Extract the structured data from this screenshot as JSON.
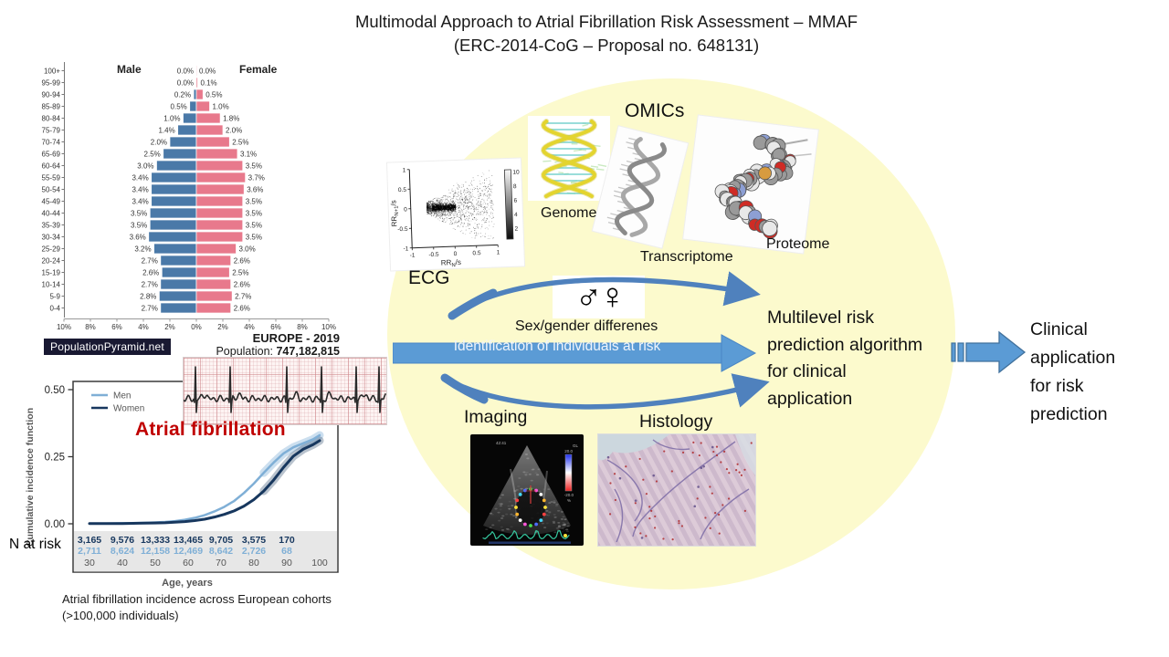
{
  "title": {
    "line1": "Multimodal Approach to Atrial Fibrillation Risk Assessment – MMAF",
    "line2": "(ERC-2014-CoG – Proposal no. 648131)"
  },
  "colors": {
    "ellipse": "#fcfacd",
    "male_bar": "#4a79a8",
    "female_bar": "#e8798c",
    "men_line": "#7fafd6",
    "women_line": "#17375e",
    "arrow_fill": "#5b9bd5",
    "arrow_outline": "#4a86c5",
    "striped_outline": "#41719c",
    "curved_arrow": "#4f81bd",
    "annotation_red": "#c00000",
    "badge_bg": "#191932",
    "table_bg": "#e7e7e7"
  },
  "labels": {
    "ecg": "ECG",
    "omics": "OMICs",
    "genome": "Genome",
    "transcriptome": "Transcriptome",
    "proteome": "Proteome",
    "gender_symbols": "♂♀",
    "sex_gender": "Sex/gender differenes",
    "identification": "Identification of individuals at risk",
    "imaging": "Imaging",
    "histology": "Histology"
  },
  "multilevel_text": {
    "lines": [
      "Multilevel risk",
      "prediction algorithm",
      "for clinical",
      "application"
    ]
  },
  "clinical_text": {
    "lines": [
      "Clinical",
      "application",
      "for risk",
      "prediction"
    ]
  },
  "caption": {
    "line1": "Atrial fibrillation incidence across European cohorts",
    "line2": "(>100,000  individuals)"
  },
  "imaging_panel": {
    "timestamp": "42:41",
    "corner_label": "GL",
    "colorbar_top": "20.0",
    "colorbar_bottom": "-20.0",
    "colorbar_unit": "%"
  },
  "chart_data": [
    {
      "id": "population_pyramid",
      "type": "bar",
      "title": "EUROPE - 2019",
      "subtitle_label": "Population: ",
      "subtitle_value": "747,182,815",
      "source": "PopulationPyramid.net",
      "unit": "%",
      "xlim": [
        0,
        10
      ],
      "x_ticks": [
        "10%",
        "8%",
        "6%",
        "4%",
        "2%",
        "0%",
        "2%",
        "4%",
        "6%",
        "8%",
        "10%"
      ],
      "categories": [
        "100+",
        "95-99",
        "90-94",
        "85-89",
        "80-84",
        "75-79",
        "70-74",
        "65-69",
        "60-64",
        "55-59",
        "50-54",
        "45-49",
        "40-44",
        "35-39",
        "30-34",
        "25-29",
        "20-24",
        "15-19",
        "10-14",
        "5-9",
        "0-4"
      ],
      "series": [
        {
          "name": "Male",
          "values": [
            0.0,
            0.0,
            0.2,
            0.5,
            1.0,
            1.4,
            2.0,
            2.5,
            3.0,
            3.4,
            3.4,
            3.4,
            3.5,
            3.5,
            3.6,
            3.2,
            2.7,
            2.6,
            2.7,
            2.8,
            2.7
          ]
        },
        {
          "name": "Female",
          "values": [
            0.0,
            0.1,
            0.5,
            1.0,
            1.8,
            2.0,
            2.5,
            3.1,
            3.5,
            3.7,
            3.6,
            3.5,
            3.5,
            3.5,
            3.5,
            3.0,
            2.6,
            2.5,
            2.6,
            2.7,
            2.6
          ]
        }
      ]
    },
    {
      "id": "af_incidence",
      "type": "line",
      "annotation": "Atrial fibrillation",
      "ylabel": "Cumulative incidence function",
      "xlabel": "Age, years",
      "ylim": [
        0,
        0.55
      ],
      "xlim": [
        27,
        103
      ],
      "y_ticks": [
        "0.50",
        "0.25",
        "0.00"
      ],
      "legend_position": "top-left",
      "series": [
        {
          "name": "Men",
          "color": "#7fafd6",
          "x": [
            30,
            35,
            40,
            45,
            50,
            53,
            56,
            59,
            62,
            65,
            68,
            71,
            74,
            77,
            80,
            83,
            86,
            89,
            92,
            95,
            98,
            100
          ],
          "y": [
            0.001,
            0.001,
            0.002,
            0.003,
            0.005,
            0.007,
            0.01,
            0.015,
            0.022,
            0.032,
            0.046,
            0.063,
            0.085,
            0.115,
            0.15,
            0.19,
            0.228,
            0.262,
            0.285,
            0.3,
            0.315,
            0.33
          ]
        },
        {
          "name": "Women",
          "color": "#17375e",
          "x": [
            30,
            35,
            40,
            45,
            50,
            53,
            56,
            59,
            62,
            65,
            68,
            71,
            74,
            77,
            80,
            83,
            86,
            89,
            92,
            95,
            98,
            100
          ],
          "y": [
            0.001,
            0.001,
            0.001,
            0.002,
            0.003,
            0.004,
            0.006,
            0.008,
            0.012,
            0.017,
            0.025,
            0.035,
            0.048,
            0.066,
            0.09,
            0.122,
            0.163,
            0.21,
            0.252,
            0.278,
            0.295,
            0.31
          ]
        }
      ],
      "n_at_risk": {
        "label": "N at risk",
        "rows": [
          [
            "3,165",
            "9,576",
            "13,333",
            "13,465",
            "9,705",
            "3,575",
            "170"
          ],
          [
            "2,711",
            "8,624",
            "12,158",
            "12,469",
            "8,642",
            "2,726",
            "68"
          ]
        ],
        "ages": [
          "30",
          "40",
          "50",
          "60",
          "70",
          "80",
          "90",
          "100"
        ]
      }
    },
    {
      "id": "poincare_ecg",
      "type": "scatter",
      "xlabel": {
        "base": "RR",
        "sub": "N",
        "suffix": "/s"
      },
      "ylabel": {
        "base": "RR",
        "sub": "N+1",
        "suffix": "/s"
      },
      "x_ticks": [
        "-1",
        "-0.5",
        "0",
        "0.5",
        "1"
      ],
      "y_ticks": [
        "1",
        "0.5",
        "0",
        "-0.5",
        "-1"
      ],
      "colorbar_ticks": [
        "10",
        "8",
        "6",
        "4",
        "2"
      ],
      "xlim": [
        -1,
        1
      ],
      "ylim": [
        -1,
        1
      ]
    }
  ]
}
